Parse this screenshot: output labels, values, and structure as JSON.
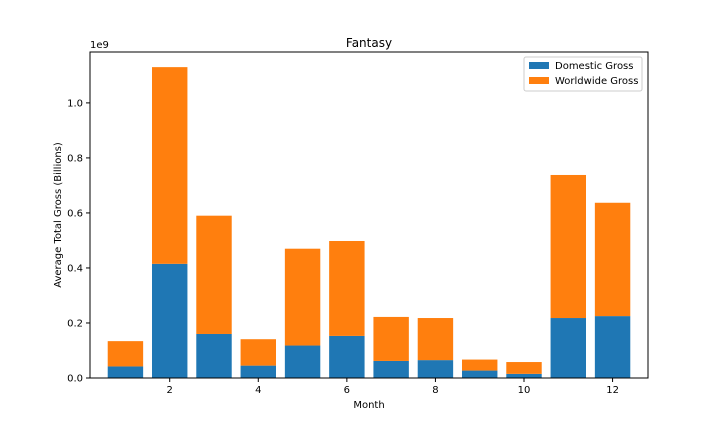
{
  "chart_data": {
    "type": "bar",
    "stacked": true,
    "title": "Fantasy",
    "xlabel": "Month",
    "ylabel": "Average Total Gross (Billions)",
    "y_offset_label": "1e9",
    "x": [
      1,
      2,
      3,
      4,
      5,
      6,
      7,
      8,
      9,
      10,
      11,
      12
    ],
    "xlim": [
      0.2,
      12.8
    ],
    "ylim": [
      0,
      1185000000
    ],
    "x_ticks": [
      2,
      4,
      6,
      8,
      10,
      12
    ],
    "y_ticks": [
      0.0,
      0.2,
      0.4,
      0.6,
      0.8,
      1.0
    ],
    "y_tick_scale": 1000000000,
    "series": [
      {
        "name": "Domestic Gross",
        "color": "#1f77b4",
        "values": [
          42000000,
          415000000,
          160000000,
          45000000,
          118000000,
          153000000,
          62000000,
          65000000,
          27000000,
          15000000,
          218000000,
          225000000
        ]
      },
      {
        "name": "Worldwide Gross",
        "color": "#ff7f0e",
        "values": [
          92000000,
          715000000,
          430000000,
          96000000,
          352000000,
          345000000,
          160000000,
          153000000,
          40000000,
          43000000,
          520000000,
          412000000
        ]
      }
    ],
    "legend_position": "top-right",
    "grid": false
  }
}
